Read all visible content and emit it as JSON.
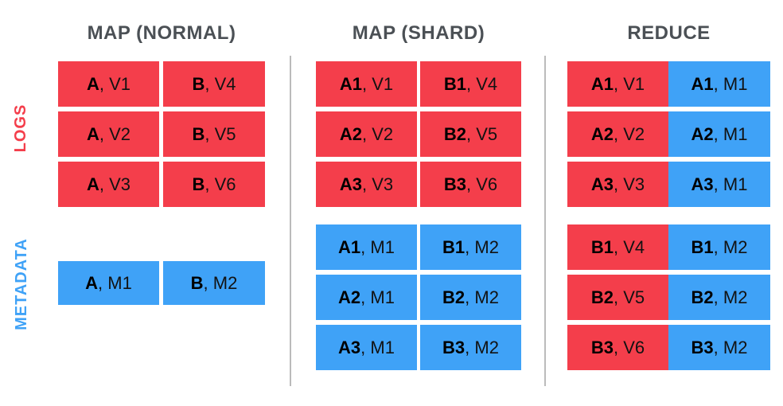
{
  "diagram": {
    "columns": [
      {
        "title": "MAP (NORMAL)"
      },
      {
        "title": "MAP (SHARD)"
      },
      {
        "title": "REDUCE"
      }
    ],
    "side_labels": {
      "logs": "LOGS",
      "metadata": "METADATA"
    },
    "colors": {
      "logs_red": "#F43E4B",
      "metadata_blue": "#3FA2F7",
      "title_gray": "#4B5055",
      "divider_gray": "#BBBBBB",
      "cell_text": "#121212"
    },
    "map_normal": {
      "logs": [
        {
          "key": "A",
          "rest": ", V1"
        },
        {
          "key": "B",
          "rest": ", V4"
        },
        {
          "key": "A",
          "rest": ", V2"
        },
        {
          "key": "B",
          "rest": ", V5"
        },
        {
          "key": "A",
          "rest": ", V3"
        },
        {
          "key": "B",
          "rest": ", V6"
        }
      ],
      "metadata": [
        {
          "key": "A",
          "rest": ", M1"
        },
        {
          "key": "B",
          "rest": ", M2"
        }
      ]
    },
    "map_shard": {
      "logs": [
        {
          "key": "A1",
          "rest": ", V1"
        },
        {
          "key": "B1",
          "rest": ", V4"
        },
        {
          "key": "A2",
          "rest": ", V2"
        },
        {
          "key": "B2",
          "rest": ", V5"
        },
        {
          "key": "A3",
          "rest": ", V3"
        },
        {
          "key": "B3",
          "rest": ", V6"
        }
      ],
      "metadata": [
        {
          "key": "A1",
          "rest": ", M1"
        },
        {
          "key": "B1",
          "rest": ", M2"
        },
        {
          "key": "A2",
          "rest": ", M1"
        },
        {
          "key": "B2",
          "rest": ", M2"
        },
        {
          "key": "A3",
          "rest": ", M1"
        },
        {
          "key": "B3",
          "rest": ", M2"
        }
      ]
    },
    "reduce": {
      "rows": [
        {
          "log": {
            "key": "A1",
            "rest": ", V1"
          },
          "meta": {
            "key": "A1",
            "rest": ", M1"
          }
        },
        {
          "log": {
            "key": "A2",
            "rest": ", V2"
          },
          "meta": {
            "key": "A2",
            "rest": ", M1"
          }
        },
        {
          "log": {
            "key": "A3",
            "rest": ", V3"
          },
          "meta": {
            "key": "A3",
            "rest": ", M1"
          }
        },
        {
          "log": {
            "key": "B1",
            "rest": ", V4"
          },
          "meta": {
            "key": "B1",
            "rest": ", M2"
          }
        },
        {
          "log": {
            "key": "B2",
            "rest": ", V5"
          },
          "meta": {
            "key": "B2",
            "rest": ", M2"
          }
        },
        {
          "log": {
            "key": "B3",
            "rest": ", V6"
          },
          "meta": {
            "key": "B3",
            "rest": ", M2"
          }
        }
      ]
    }
  }
}
